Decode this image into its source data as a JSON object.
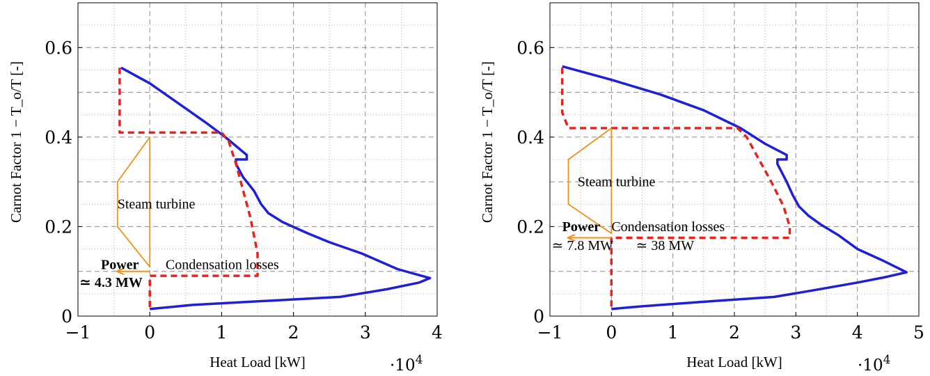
{
  "chart_data": [
    {
      "type": "line",
      "xlabel": "Heat Load [kW]",
      "ylabel": "Carnot Factor 1 − T_o/T [-]",
      "x_multiplier": "·10",
      "x_multiplier_exp": "4",
      "xlim": [
        -1,
        4
      ],
      "ylim": [
        0,
        0.7
      ],
      "xticks": [
        "−1",
        "0",
        "1",
        "2",
        "3",
        "4"
      ],
      "yticks": [
        "0",
        "0.2",
        "0.4",
        "0.6"
      ],
      "xtick_values": [
        -1,
        0,
        1,
        2,
        3,
        4
      ],
      "ytick_values": [
        0,
        0.2,
        0.4,
        0.6
      ],
      "grid": true,
      "series": [
        {
          "color": "#1f1fd6",
          "style": "solid",
          "points": [
            [
              -0.4,
              0.555
            ],
            [
              0,
              0.52
            ],
            [
              0.4,
              0.475
            ],
            [
              0.8,
              0.43
            ],
            [
              1.05,
              0.4
            ],
            [
              1.35,
              0.36
            ],
            [
              1.35,
              0.35
            ],
            [
              1.2,
              0.35
            ],
            [
              1.2,
              0.34
            ],
            [
              1.3,
              0.31
            ],
            [
              1.45,
              0.28
            ],
            [
              1.55,
              0.25
            ],
            [
              1.65,
              0.23
            ],
            [
              1.85,
              0.21
            ],
            [
              2.2,
              0.185
            ],
            [
              2.5,
              0.165
            ],
            [
              2.95,
              0.14
            ],
            [
              3.45,
              0.105
            ],
            [
              3.9,
              0.085
            ],
            [
              3.75,
              0.075
            ],
            [
              3.3,
              0.06
            ],
            [
              2.65,
              0.043
            ],
            [
              1.5,
              0.033
            ],
            [
              0.6,
              0.025
            ],
            [
              0,
              0.016
            ]
          ]
        },
        {
          "color": "#e8231f",
          "style": "dashed",
          "points": [
            [
              -0.42,
              0.555
            ],
            [
              -0.42,
              0.41
            ],
            [
              1.0,
              0.41
            ],
            [
              1.1,
              0.39
            ],
            [
              1.2,
              0.34
            ],
            [
              1.3,
              0.28
            ],
            [
              1.4,
              0.22
            ],
            [
              1.5,
              0.14
            ],
            [
              1.5,
              0.1
            ],
            [
              1.5,
              0.09
            ],
            [
              0.0,
              0.09
            ],
            [
              0.0,
              0.016
            ]
          ]
        },
        {
          "color": "#f29118",
          "style": "solid",
          "points": [
            [
              0,
              0.4
            ],
            [
              -0.45,
              0.3
            ],
            [
              -0.45,
              0.2
            ],
            [
              0,
              0.11
            ],
            [
              0,
              0.4
            ]
          ]
        },
        {
          "color": "#f29118",
          "style": "arrow",
          "points": [
            [
              0,
              0.1
            ],
            [
              -0.45,
              0.1
            ]
          ]
        }
      ],
      "annotations": [
        {
          "text": "Steam turbine",
          "x": -0.45,
          "y": 0.24,
          "bold": false
        },
        {
          "text": "Power",
          "x": -0.68,
          "y": 0.105,
          "bold": true
        },
        {
          "text": "≃ 4.3 MW",
          "x": -0.98,
          "y": 0.065,
          "bold": true
        },
        {
          "text": "Condensation losses",
          "x": 0.22,
          "y": 0.105,
          "bold": false
        }
      ]
    },
    {
      "type": "line",
      "xlabel": "Heat Load [kW]",
      "ylabel": "Carnot Factor 1 − T_o/T [-]",
      "x_multiplier": "·10",
      "x_multiplier_exp": "4",
      "xlim": [
        -1,
        5
      ],
      "ylim": [
        0,
        0.7
      ],
      "xticks": [
        "−1",
        "0",
        "1",
        "2",
        "3",
        "4",
        "5"
      ],
      "yticks": [
        "0",
        "0.2",
        "0.4",
        "0.6"
      ],
      "xtick_values": [
        -1,
        0,
        1,
        2,
        3,
        4,
        5
      ],
      "ytick_values": [
        0,
        0.2,
        0.4,
        0.6
      ],
      "grid": true,
      "series": [
        {
          "color": "#1f1fd6",
          "style": "solid",
          "points": [
            [
              -0.8,
              0.558
            ],
            [
              0,
              0.528
            ],
            [
              0.8,
              0.495
            ],
            [
              1.5,
              0.46
            ],
            [
              2.1,
              0.42
            ],
            [
              2.5,
              0.385
            ],
            [
              2.85,
              0.36
            ],
            [
              2.85,
              0.35
            ],
            [
              2.7,
              0.35
            ],
            [
              2.7,
              0.34
            ],
            [
              2.85,
              0.3
            ],
            [
              2.95,
              0.27
            ],
            [
              3.05,
              0.245
            ],
            [
              3.2,
              0.225
            ],
            [
              3.4,
              0.205
            ],
            [
              3.7,
              0.18
            ],
            [
              4.0,
              0.15
            ],
            [
              4.4,
              0.125
            ],
            [
              4.8,
              0.098
            ],
            [
              4.45,
              0.087
            ],
            [
              4.0,
              0.075
            ],
            [
              3.3,
              0.058
            ],
            [
              2.65,
              0.043
            ],
            [
              1.5,
              0.032
            ],
            [
              0.5,
              0.022
            ],
            [
              0,
              0.016
            ]
          ]
        },
        {
          "color": "#e8231f",
          "style": "dashed",
          "points": [
            [
              -0.8,
              0.555
            ],
            [
              -0.8,
              0.455
            ],
            [
              -0.7,
              0.42
            ],
            [
              2.05,
              0.42
            ],
            [
              2.2,
              0.4
            ],
            [
              2.4,
              0.35
            ],
            [
              2.6,
              0.3
            ],
            [
              2.8,
              0.245
            ],
            [
              2.9,
              0.2
            ],
            [
              2.9,
              0.175
            ],
            [
              0.0,
              0.175
            ],
            [
              0.0,
              0.016
            ]
          ]
        },
        {
          "color": "#f29118",
          "style": "solid",
          "points": [
            [
              0,
              0.42
            ],
            [
              -0.7,
              0.35
            ],
            [
              -0.7,
              0.25
            ],
            [
              0,
              0.185
            ],
            [
              0,
              0.42
            ]
          ]
        },
        {
          "color": "#f29118",
          "style": "arrow",
          "points": [
            [
              0,
              0.175
            ],
            [
              -0.7,
              0.175
            ]
          ]
        }
      ],
      "annotations": [
        {
          "text": "Steam turbine",
          "x": -0.55,
          "y": 0.29,
          "bold": false
        },
        {
          "text": "Power",
          "x": -0.8,
          "y": 0.19,
          "bold": true
        },
        {
          "text": "Condensation losses",
          "x": 0.0,
          "y": 0.19,
          "bold": false
        },
        {
          "text": "≃ 7.8 MW",
          "x": -0.97,
          "y": 0.148,
          "bold": false
        },
        {
          "text": "≃ 38 MW",
          "x": 0.4,
          "y": 0.148,
          "bold": false
        }
      ]
    }
  ]
}
